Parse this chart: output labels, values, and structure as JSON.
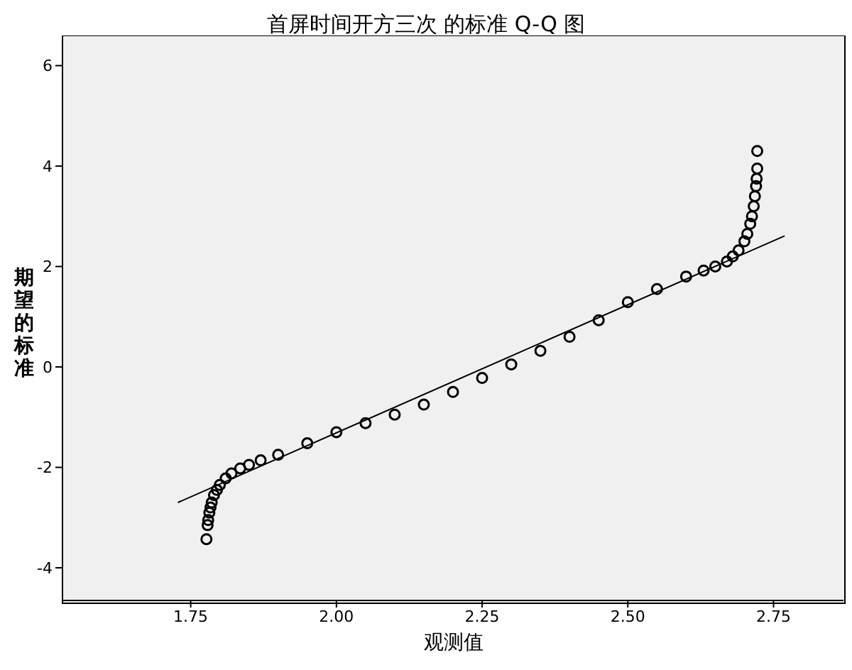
{
  "chart_data": {
    "type": "scatter",
    "title": "首屏时间开方三次 的标准 Q-Q 图",
    "xlabel": "观测值",
    "ylabel": "期望的标准",
    "series": [
      {
        "color": "#000000",
        "marker": "circle",
        "x": [
          1.777,
          1.779,
          1.78,
          1.782,
          1.784,
          1.786,
          1.79,
          1.795,
          1.8,
          1.81,
          1.82,
          1.835,
          1.85,
          1.87,
          1.9,
          1.95,
          2.0,
          2.05,
          2.1,
          2.15,
          2.2,
          2.25,
          2.3,
          2.35,
          2.4,
          2.45,
          2.5,
          2.55,
          2.6,
          2.63,
          2.65,
          2.67,
          2.68,
          2.69,
          2.7,
          2.705,
          2.71,
          2.713,
          2.716,
          2.718,
          2.72,
          2.721,
          2.722,
          2.722
        ],
        "values": [
          -3.43,
          -3.15,
          -3.05,
          -2.9,
          -2.8,
          -2.7,
          -2.55,
          -2.45,
          -2.35,
          -2.22,
          -2.12,
          -2.02,
          -1.95,
          -1.86,
          -1.75,
          -1.52,
          -1.3,
          -1.12,
          -0.95,
          -0.75,
          -0.5,
          -0.22,
          0.05,
          0.32,
          0.6,
          0.93,
          1.29,
          1.55,
          1.8,
          1.92,
          2.0,
          2.1,
          2.2,
          2.32,
          2.5,
          2.65,
          2.85,
          3.0,
          3.2,
          3.4,
          3.6,
          3.75,
          3.95,
          4.3
        ]
      },
      {
        "type": "line",
        "color": "#000000",
        "marker": "none",
        "x": [
          1.728,
          2.769
        ],
        "values": [
          -2.7,
          2.61
        ]
      }
    ],
    "xlim": [
      1.53,
      2.87
    ],
    "xticks": [
      1.75,
      {
        "value": 2,
        "label": "2.00"
      },
      2.25,
      {
        "value": 2.5,
        "label": "2.50"
      },
      2.75
    ],
    "ylim": [
      -4.65,
      6.6
    ],
    "yticks": [
      -4,
      -2,
      0,
      2,
      4,
      6
    ]
  }
}
